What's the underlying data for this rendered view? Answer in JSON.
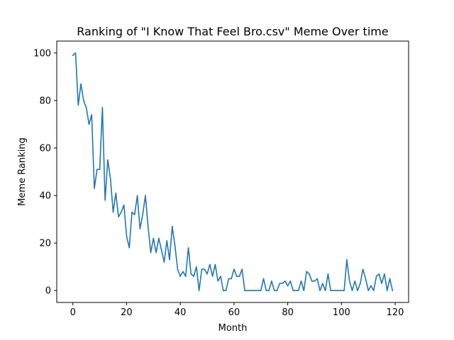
{
  "chart_data": {
    "type": "line",
    "title": "Ranking of \"I Know That Feel Bro.csv\" Meme Over time",
    "xlabel": "Month",
    "ylabel": "Meme Ranking",
    "xlim": [
      -6,
      125
    ],
    "ylim": [
      -5,
      105
    ],
    "xticks": [
      0,
      20,
      40,
      60,
      80,
      100,
      120
    ],
    "yticks": [
      0,
      20,
      40,
      60,
      80,
      100
    ],
    "grid": false,
    "series": [
      {
        "color": "#1f77b4",
        "x": [
          0,
          1,
          2,
          3,
          4,
          5,
          6,
          7,
          8,
          9,
          10,
          11,
          12,
          13,
          14,
          15,
          16,
          17,
          18,
          19,
          20,
          21,
          22,
          23,
          24,
          25,
          26,
          27,
          28,
          29,
          30,
          31,
          32,
          33,
          34,
          35,
          36,
          37,
          38,
          39,
          40,
          41,
          42,
          43,
          44,
          45,
          46,
          47,
          48,
          49,
          50,
          51,
          52,
          53,
          54,
          55,
          56,
          57,
          58,
          59,
          60,
          61,
          62,
          63,
          64,
          65,
          66,
          67,
          68,
          69,
          70,
          71,
          72,
          73,
          74,
          75,
          76,
          77,
          78,
          79,
          80,
          81,
          82,
          83,
          84,
          85,
          86,
          87,
          88,
          89,
          90,
          91,
          92,
          93,
          94,
          95,
          96,
          97,
          98,
          99,
          100,
          101,
          102,
          103,
          104,
          105,
          106,
          107,
          108,
          109,
          110,
          111,
          112,
          113,
          114,
          115,
          116,
          117,
          118,
          119
        ],
        "values": [
          99,
          100,
          78,
          87,
          80,
          77,
          70,
          74,
          43,
          51,
          51,
          77,
          38,
          55,
          47,
          33,
          41,
          31,
          33,
          36,
          23,
          18,
          33,
          32,
          40,
          26,
          32,
          40,
          27,
          16,
          22,
          16,
          22,
          17,
          12,
          21,
          13,
          27,
          19,
          9,
          6,
          8,
          6,
          18,
          7,
          6,
          10,
          0,
          9,
          9,
          7,
          11,
          6,
          11,
          4,
          6,
          0,
          0,
          5,
          5,
          9,
          6,
          6,
          9,
          0,
          0,
          0,
          0,
          0,
          0,
          0,
          5,
          0,
          0,
          4,
          0,
          0,
          3,
          3,
          4,
          2,
          4,
          0,
          0,
          0,
          4,
          0,
          8,
          7,
          4,
          4,
          5,
          0,
          3,
          0,
          7,
          0,
          0,
          0,
          0,
          0,
          0,
          13,
          4,
          0,
          4,
          0,
          3,
          9,
          5,
          0,
          2,
          0,
          6,
          7,
          3,
          7,
          0,
          5,
          0
        ]
      }
    ]
  }
}
